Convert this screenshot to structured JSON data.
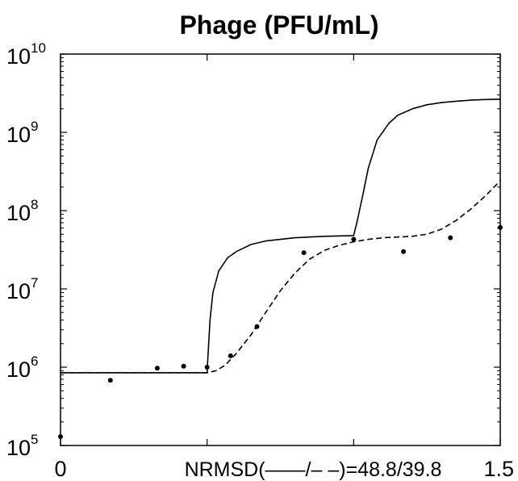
{
  "chart_data": {
    "type": "line",
    "title": "Phage (PFU/mL)",
    "xlabel": "",
    "ylabel": "",
    "xlim": [
      0,
      1.5
    ],
    "y_scale": "log",
    "ylim": [
      100000,
      10000000000
    ],
    "x_ticks": [
      {
        "value": 0,
        "label": "0"
      },
      {
        "value": 1.5,
        "label": "1.5"
      }
    ],
    "y_ticks": [
      {
        "value": 100000,
        "base": "10",
        "exp": "5"
      },
      {
        "value": 1000000,
        "base": "10",
        "exp": "6"
      },
      {
        "value": 10000000,
        "base": "10",
        "exp": "7"
      },
      {
        "value": 100000000,
        "base": "10",
        "exp": "8"
      },
      {
        "value": 1000000000,
        "base": "10",
        "exp": "9"
      },
      {
        "value": 10000000000,
        "base": "10",
        "exp": "10"
      }
    ],
    "annotation": "NRMSD(——/– –)=48.8/39.8",
    "grid": false,
    "legend": "none",
    "series": [
      {
        "style": "solid",
        "color": "#000000",
        "x": [
          0,
          0.5,
          0.501,
          0.505,
          0.51,
          0.52,
          0.54,
          0.57,
          0.6,
          0.65,
          0.7,
          0.8,
          0.9,
          1.0,
          1.001,
          1.01,
          1.03,
          1.05,
          1.08,
          1.12,
          1.15,
          1.2,
          1.25,
          1.3,
          1.35,
          1.4,
          1.45,
          1.5
        ],
        "y": [
          850000,
          850000,
          1000000,
          1900000,
          4000000,
          9000000,
          17000000,
          25000000,
          30000000,
          37000000,
          41000000,
          45000000,
          47000000,
          48000000,
          50000000,
          68000000,
          150000000,
          350000000,
          800000000,
          1300000000,
          1650000000,
          2000000000,
          2250000000,
          2400000000,
          2500000000,
          2580000000,
          2630000000,
          2650000000
        ]
      },
      {
        "style": "dashed",
        "color": "#000000",
        "x": [
          0,
          0.5,
          0.53,
          0.56,
          0.6,
          0.65,
          0.7,
          0.75,
          0.8,
          0.85,
          0.9,
          0.95,
          1.0,
          1.05,
          1.1,
          1.15,
          1.2,
          1.25,
          1.3,
          1.35,
          1.4,
          1.45,
          1.5
        ],
        "y": [
          850000,
          850000,
          900000,
          1050000,
          1500000,
          2600000,
          5000000,
          9500000,
          16000000,
          24000000,
          31000000,
          36000000,
          40000000,
          43000000,
          45000000,
          46000000,
          47000000,
          50000000,
          58000000,
          75000000,
          105000000,
          155000000,
          240000000
        ]
      },
      {
        "style": "markers",
        "color": "#000000",
        "x": [
          0,
          0.17,
          0.33,
          0.42,
          0.5,
          0.58,
          0.67,
          0.83,
          1.0,
          1.17,
          1.33,
          1.5
        ],
        "y": [
          130000,
          680000,
          970000,
          1030000,
          1000000,
          1400000,
          3300000,
          29000000,
          43000000,
          30000000,
          45000000,
          61000000
        ]
      }
    ]
  }
}
